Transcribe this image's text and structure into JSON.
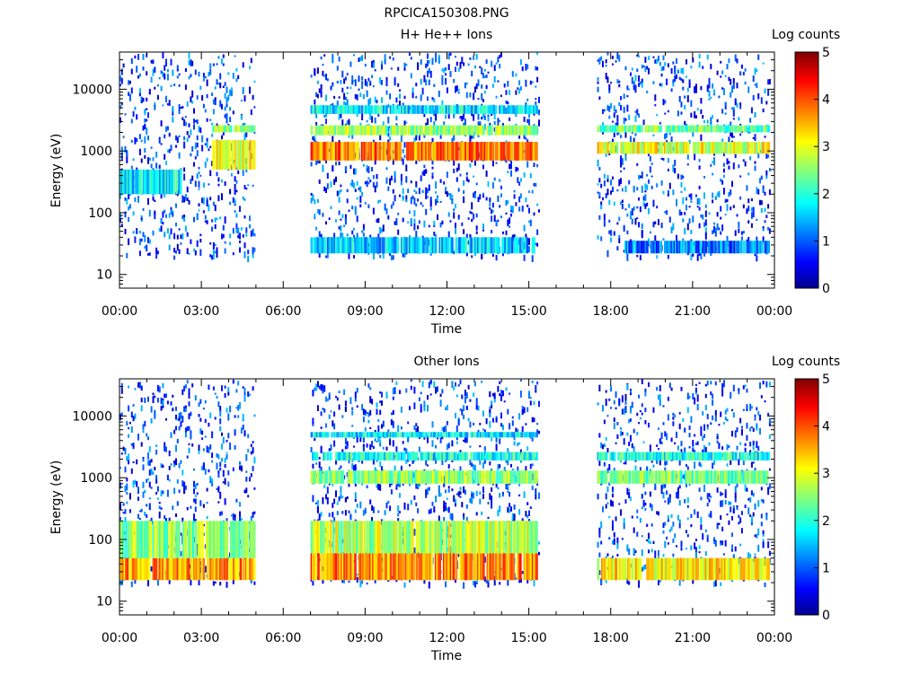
{
  "figure_title": "RPCICA150308.PNG",
  "panels": [
    {
      "title": "H+ He++ Ions",
      "ylabel": "Energy (eV)",
      "xlabel": "Time",
      "colorbar_label": "Log counts"
    },
    {
      "title": "Other Ions",
      "ylabel": "Energy (eV)",
      "xlabel": "Time",
      "colorbar_label": "Log counts"
    }
  ],
  "chart_data": [
    {
      "type": "heatmap",
      "title": "H+ He++ Ions",
      "xlabel": "Time",
      "ylabel": "Energy (eV)",
      "x_range": [
        "00:00",
        "24:00"
      ],
      "x_ticks": [
        "00:00",
        "03:00",
        "06:00",
        "09:00",
        "12:00",
        "15:00",
        "18:00",
        "21:00",
        "00:00"
      ],
      "y_scale": "log",
      "y_range": [
        6,
        40000
      ],
      "y_ticks": [
        10,
        100,
        1000,
        10000
      ],
      "y_tick_labels": [
        "10",
        "100",
        "1000",
        "10000"
      ],
      "colorbar": {
        "label": "Log counts",
        "range": [
          0,
          5
        ],
        "ticks": [
          "0",
          "1",
          "2",
          "3",
          "4",
          "5"
        ],
        "colormap": "jet"
      },
      "data_intervals_hours": [
        [
          0.0,
          4.95
        ],
        [
          7.0,
          15.35
        ],
        [
          17.5,
          23.85
        ]
      ],
      "bands": [
        {
          "t_start": 0.0,
          "t_end": 2.3,
          "e_low": 200,
          "e_high": 500,
          "log_counts": 1.8
        },
        {
          "t_start": 3.4,
          "t_end": 4.9,
          "e_low": 500,
          "e_high": 1500,
          "log_counts": 3.0
        },
        {
          "t_start": 3.4,
          "t_end": 4.9,
          "e_low": 2000,
          "e_high": 2600,
          "log_counts": 2.6
        },
        {
          "t_start": 7.0,
          "t_end": 15.3,
          "e_low": 700,
          "e_high": 1400,
          "log_counts": 3.8
        },
        {
          "t_start": 7.0,
          "t_end": 15.3,
          "e_low": 1800,
          "e_high": 2600,
          "log_counts": 2.6
        },
        {
          "t_start": 7.0,
          "t_end": 15.3,
          "e_low": 4000,
          "e_high": 5500,
          "log_counts": 1.8
        },
        {
          "t_start": 7.0,
          "t_end": 15.3,
          "e_low": 22,
          "e_high": 40,
          "log_counts": 1.6
        },
        {
          "t_start": 17.5,
          "t_end": 23.8,
          "e_low": 900,
          "e_high": 1400,
          "log_counts": 3.0
        },
        {
          "t_start": 17.5,
          "t_end": 23.8,
          "e_low": 2000,
          "e_high": 2600,
          "log_counts": 2.4
        },
        {
          "t_start": 18.5,
          "t_end": 23.8,
          "e_low": 22,
          "e_high": 35,
          "log_counts": 1.2
        }
      ]
    },
    {
      "type": "heatmap",
      "title": "Other Ions",
      "xlabel": "Time",
      "ylabel": "Energy (eV)",
      "x_range": [
        "00:00",
        "24:00"
      ],
      "x_ticks": [
        "00:00",
        "03:00",
        "06:00",
        "09:00",
        "12:00",
        "15:00",
        "18:00",
        "21:00",
        "00:00"
      ],
      "y_scale": "log",
      "y_range": [
        6,
        40000
      ],
      "y_ticks": [
        10,
        100,
        1000,
        10000
      ],
      "y_tick_labels": [
        "10",
        "100",
        "1000",
        "10000"
      ],
      "colorbar": {
        "label": "Log counts",
        "range": [
          0,
          5
        ],
        "ticks": [
          "0",
          "1",
          "2",
          "3",
          "4",
          "5"
        ],
        "colormap": "jet"
      },
      "data_intervals_hours": [
        [
          0.0,
          4.95
        ],
        [
          7.0,
          15.35
        ],
        [
          17.5,
          23.85
        ]
      ],
      "bands": [
        {
          "t_start": 0.0,
          "t_end": 4.9,
          "e_low": 22,
          "e_high": 50,
          "log_counts": 3.6
        },
        {
          "t_start": 0.0,
          "t_end": 4.9,
          "e_low": 50,
          "e_high": 200,
          "log_counts": 2.6
        },
        {
          "t_start": 7.0,
          "t_end": 15.3,
          "e_low": 22,
          "e_high": 60,
          "log_counts": 3.7
        },
        {
          "t_start": 7.0,
          "t_end": 15.3,
          "e_low": 60,
          "e_high": 200,
          "log_counts": 2.8
        },
        {
          "t_start": 7.0,
          "t_end": 15.3,
          "e_low": 800,
          "e_high": 1300,
          "log_counts": 2.6
        },
        {
          "t_start": 7.0,
          "t_end": 15.3,
          "e_low": 1900,
          "e_high": 2600,
          "log_counts": 2.0
        },
        {
          "t_start": 7.0,
          "t_end": 15.3,
          "e_low": 4500,
          "e_high": 5500,
          "log_counts": 1.8
        },
        {
          "t_start": 17.5,
          "t_end": 23.8,
          "e_low": 22,
          "e_high": 50,
          "log_counts": 3.2
        },
        {
          "t_start": 17.5,
          "t_end": 23.8,
          "e_low": 800,
          "e_high": 1300,
          "log_counts": 2.4
        },
        {
          "t_start": 17.5,
          "t_end": 23.8,
          "e_low": 1900,
          "e_high": 2600,
          "log_counts": 2.0
        }
      ]
    }
  ]
}
